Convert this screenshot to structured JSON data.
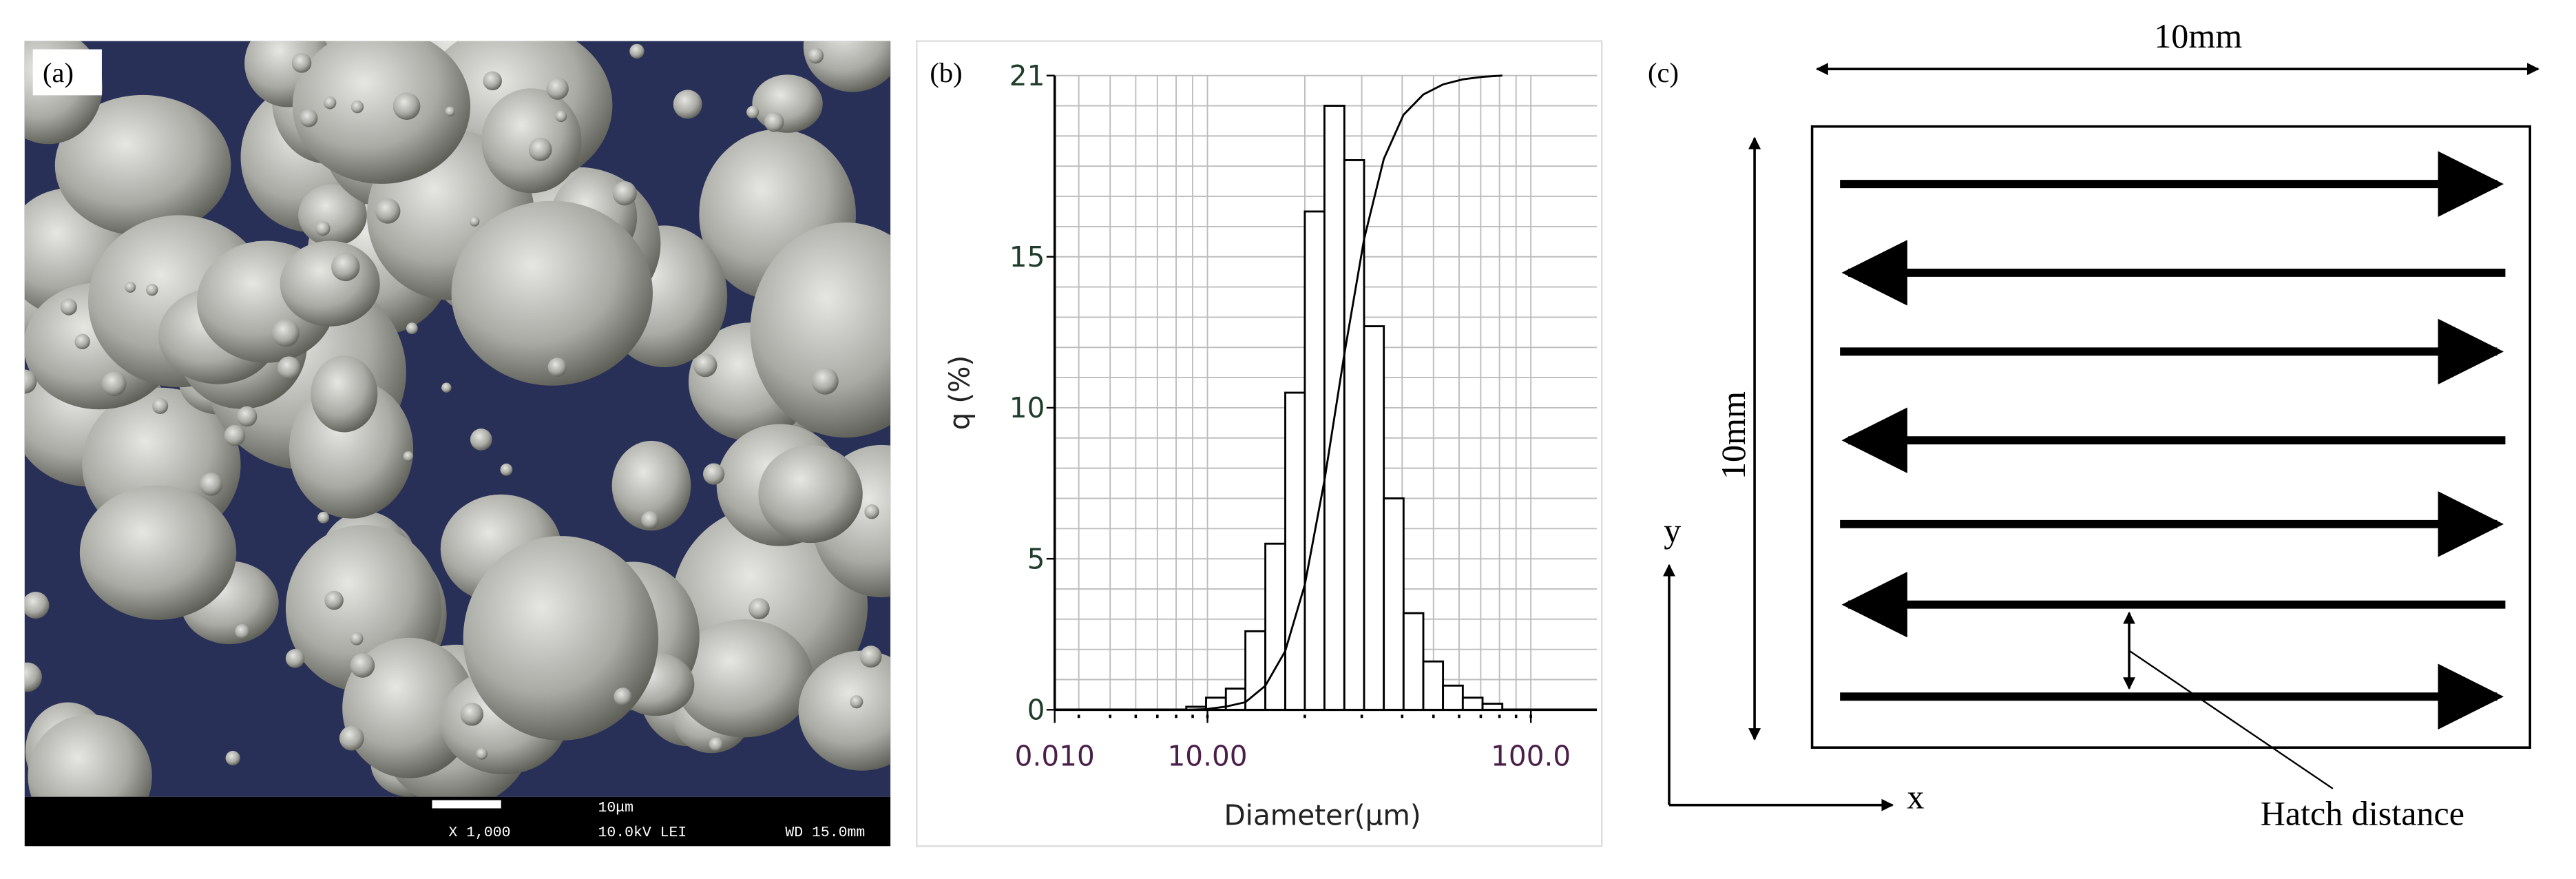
{
  "panel_a": {
    "label": "(a)",
    "scale_bar_label": "10μm",
    "info": [
      "X 1,000",
      "10.0kV LEI",
      "WD 15.0mm"
    ]
  },
  "chart_data": {
    "type": "histogram",
    "panel_label": "(b)",
    "xlabel": "Diameter(μm)",
    "ylabel": "q (%)",
    "x_log": true,
    "xlim": [
      3.37,
      160
    ],
    "xticks": [
      {
        "value": 10,
        "label": "10.00"
      },
      {
        "value": 100,
        "label": "100.0"
      }
    ],
    "x_axis_start_label": "0.010",
    "ylim": [
      0,
      21
    ],
    "yticks": [
      0,
      5,
      10,
      15,
      21
    ],
    "grid": true,
    "color": "#000000",
    "bins": [
      8.6,
      9.9,
      11.4,
      13.1,
      15.1,
      17.4,
      20.0,
      23.0,
      26.5,
      30.5,
      35.1,
      40.4,
      46.5,
      53.5,
      61.6,
      70.9,
      81.6
    ],
    "values": [
      0.1,
      0.4,
      0.7,
      2.6,
      5.5,
      10.5,
      16.5,
      20,
      18.2,
      12.7,
      7,
      3.2,
      1.6,
      0.8,
      0.4,
      0.2
    ],
    "cumulative": {
      "axis": "y2",
      "values": [
        0,
        0.1,
        0.5,
        1.2,
        3.8,
        9.3,
        19.8,
        36.3,
        56.3,
        74.5,
        87.2,
        94.2,
        97.4,
        99,
        99.8,
        100.2,
        100.4
      ]
    },
    "y2lim": [
      0,
      100.4
    ]
  },
  "panel_c": {
    "label": "(c)",
    "width_label": "10mm",
    "height_label": "10mm",
    "y_axis": "y",
    "x_axis": "x",
    "hatch_label": "Hatch distance"
  }
}
